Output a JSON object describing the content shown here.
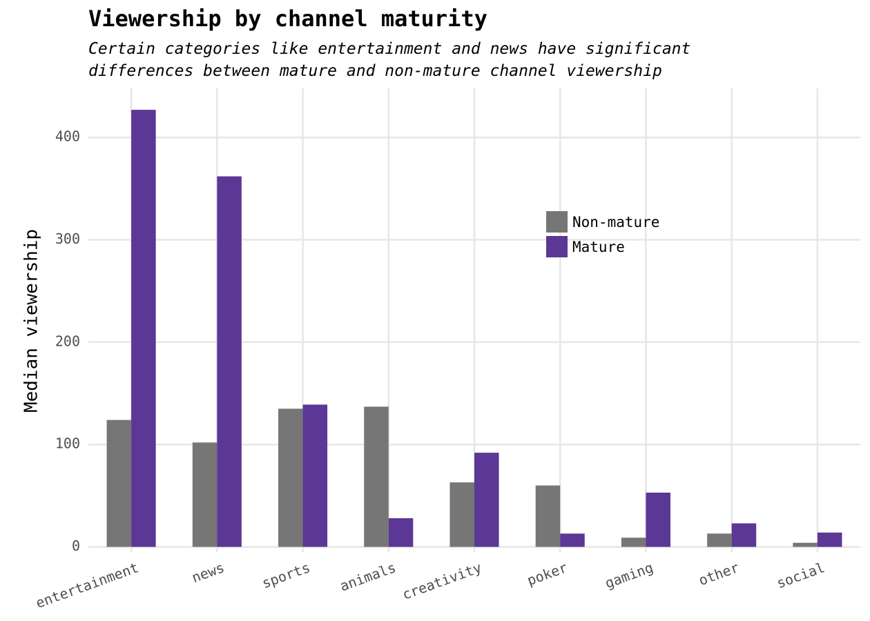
{
  "chart_data": {
    "type": "bar",
    "title": "Viewership by channel maturity",
    "subtitle_lines": [
      "Certain categories like entertainment and news have significant",
      "differences between mature and non-mature channel viewership"
    ],
    "xlabel": "",
    "ylabel": "Median viewership",
    "categories": [
      "entertainment",
      "news",
      "sports",
      "animals",
      "creativity",
      "poker",
      "gaming",
      "other",
      "social"
    ],
    "series": [
      {
        "name": "Non-mature",
        "color": "#767676",
        "values": [
          124,
          102,
          135,
          137,
          63,
          60,
          9,
          13,
          4
        ]
      },
      {
        "name": "Mature",
        "color": "#5b3796",
        "values": [
          427,
          362,
          139,
          28,
          92,
          13,
          53,
          23,
          14
        ]
      }
    ],
    "ylim": [
      -5,
      448
    ],
    "yticks": [
      0,
      100,
      200,
      300,
      400
    ],
    "grid": true,
    "legend_position": "inside-top-right"
  }
}
